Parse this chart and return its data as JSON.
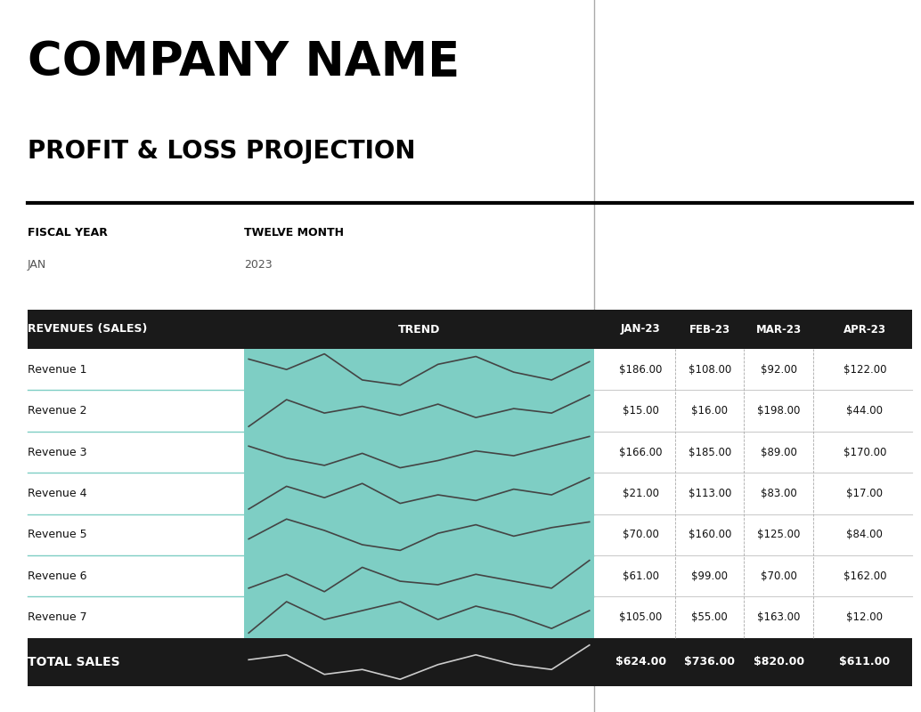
{
  "company_name": "COMPANY NAME",
  "subtitle": "PROFIT & LOSS PROJECTION",
  "fiscal_year_label": "FISCAL YEAR",
  "fiscal_year_value": "JAN",
  "period_label": "TWELVE MONTH",
  "period_value": "2023",
  "header_bg": "#1a1a1a",
  "trend_bg": "#7ecec4",
  "row_line_color": "#7ecec4",
  "data_line_color": "#444444",
  "total_bg": "#1a1a1a",
  "col_headers": [
    "REVENUES (SALES)",
    "TREND",
    "JAN-23",
    "FEB-23",
    "MAR-23",
    "APR-23"
  ],
  "row_labels": [
    "Revenue 1",
    "Revenue 2",
    "Revenue 3",
    "Revenue 4",
    "Revenue 5",
    "Revenue 6",
    "Revenue 7"
  ],
  "data": [
    [
      186,
      108,
      92,
      122
    ],
    [
      15,
      16,
      198,
      44
    ],
    [
      166,
      185,
      89,
      170
    ],
    [
      21,
      113,
      83,
      17
    ],
    [
      70,
      160,
      125,
      84
    ],
    [
      61,
      99,
      70,
      162
    ],
    [
      105,
      55,
      163,
      12
    ]
  ],
  "totals": [
    624,
    736,
    820,
    611
  ],
  "trend_data": {
    "Revenue 1": [
      80,
      60,
      90,
      40,
      30,
      70,
      85,
      55,
      40,
      75
    ],
    "Revenue 2": [
      20,
      80,
      50,
      65,
      45,
      70,
      40,
      60,
      50,
      90
    ],
    "Revenue 3": [
      70,
      45,
      30,
      55,
      25,
      40,
      60,
      50,
      70,
      90
    ],
    "Revenue 4": [
      30,
      70,
      50,
      75,
      40,
      55,
      45,
      65,
      55,
      85
    ],
    "Revenue 5": [
      40,
      75,
      55,
      30,
      20,
      50,
      65,
      45,
      60,
      70
    ],
    "Revenue 6": [
      35,
      55,
      30,
      65,
      45,
      40,
      55,
      45,
      35,
      75
    ],
    "Revenue 7": [
      30,
      65,
      45,
      55,
      65,
      45,
      60,
      50,
      35,
      55
    ],
    "TOTAL": [
      50,
      55,
      35,
      40,
      30,
      45,
      55,
      45,
      40,
      65
    ]
  }
}
